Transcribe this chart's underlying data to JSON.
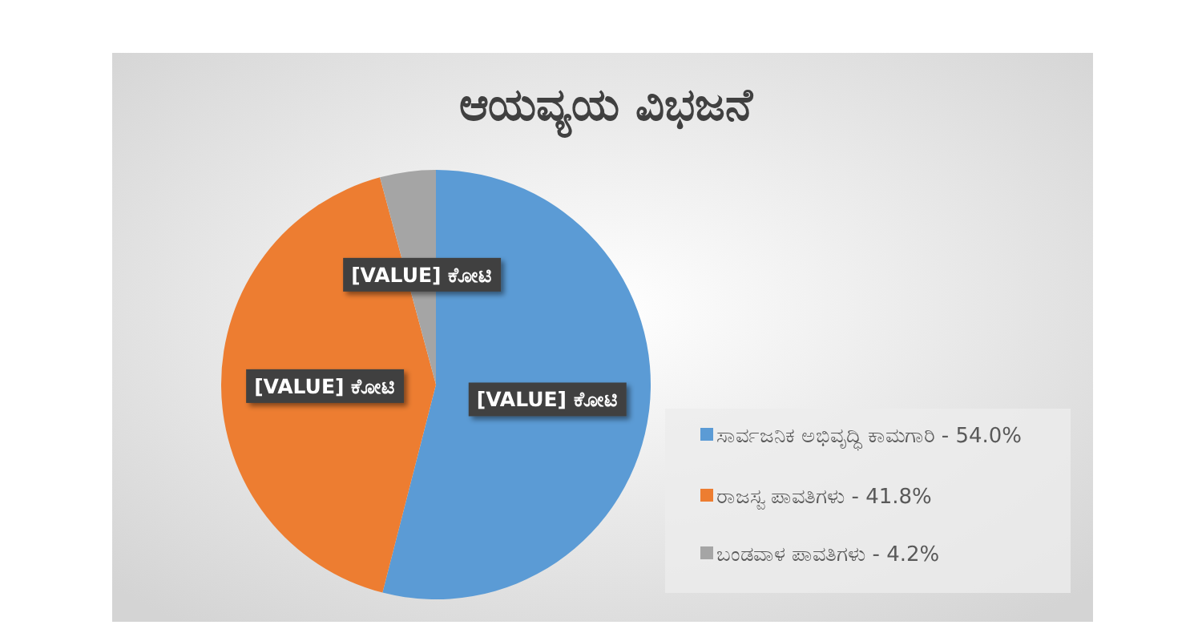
{
  "chart_data": {
    "type": "pie",
    "title": "ಆಯವ್ಯಯ ವಿಭಜನೆ",
    "categories": [
      "ಸಾರ್ವಜನಿಕ ಅಭಿವೃದ್ಧಿ ಕಾಮಗಾರಿ - 54.0%",
      "ರಾಜಸ್ವ ಪಾವತಿಗಳು - 41.8%",
      "ಬಂಡವಾಳ ಪಾವತಿಗಳು - 4.2%"
    ],
    "values": [
      54.0,
      41.8,
      4.2
    ],
    "colors": [
      "#5b9bd5",
      "#ed7d31",
      "#a5a5a5"
    ],
    "value_labels": [
      "[VALUE] ಕೋಟಿ",
      "[VALUE] ಕೋಟಿ",
      "[VALUE] ಕೋಟಿ"
    ],
    "legend": "bottom right"
  }
}
